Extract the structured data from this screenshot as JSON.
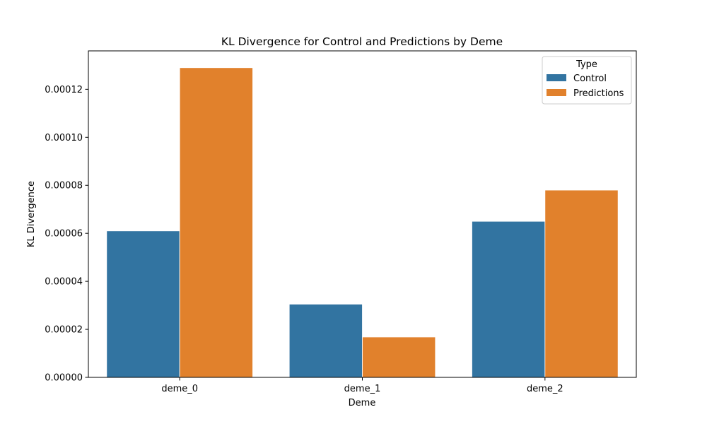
{
  "chart_data": {
    "type": "bar",
    "title": "KL Divergence for Control and Predictions by Deme",
    "xlabel": "Deme",
    "ylabel": "KL Divergence",
    "categories": [
      "deme_0",
      "deme_1",
      "deme_2"
    ],
    "series": [
      {
        "name": "Control",
        "color": "#3274a1",
        "values": [
          6.1e-05,
          3.05e-05,
          6.5e-05
        ]
      },
      {
        "name": "Predictions",
        "color": "#e1812c",
        "values": [
          0.000129,
          1.68e-05,
          7.8e-05
        ]
      }
    ],
    "ylim": [
      0,
      0.000136
    ],
    "yticks": [
      0,
      2e-05,
      4e-05,
      6e-05,
      8e-05,
      0.0001,
      0.00012
    ],
    "ytick_labels": [
      "0.00000",
      "0.00002",
      "0.00004",
      "0.00006",
      "0.00008",
      "0.00010",
      "0.00012"
    ],
    "grid": false,
    "legend": {
      "title": "Type",
      "placement": "top-right"
    }
  }
}
